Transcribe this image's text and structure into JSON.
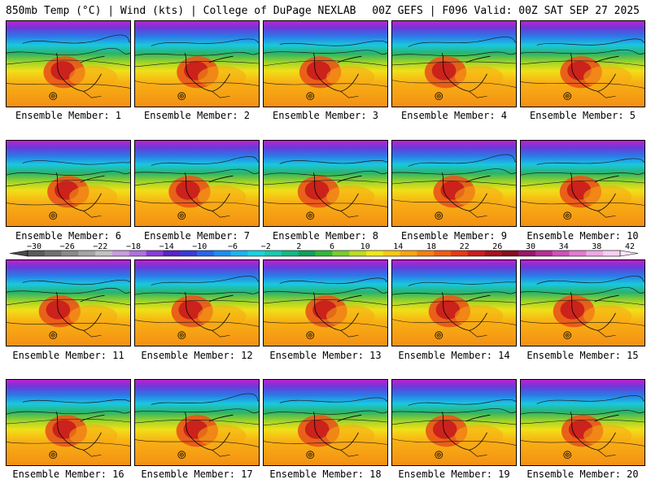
{
  "header": {
    "left": "850mb Temp (°C) | Wind (kts) | College of DuPage NEXLAB",
    "right": "00Z GEFS | F096 Valid: 00Z SAT SEP 27 2025"
  },
  "panels": [
    {
      "label": "Ensemble Member: 1"
    },
    {
      "label": "Ensemble Member: 2"
    },
    {
      "label": "Ensemble Member: 3"
    },
    {
      "label": "Ensemble Member: 4"
    },
    {
      "label": "Ensemble Member: 5"
    },
    {
      "label": "Ensemble Member: 6"
    },
    {
      "label": "Ensemble Member: 7"
    },
    {
      "label": "Ensemble Member: 8"
    },
    {
      "label": "Ensemble Member: 9"
    },
    {
      "label": "Ensemble Member: 10"
    },
    {
      "label": "Ensemble Member: 11"
    },
    {
      "label": "Ensemble Member: 12"
    },
    {
      "label": "Ensemble Member: 13"
    },
    {
      "label": "Ensemble Member: 14"
    },
    {
      "label": "Ensemble Member: 15"
    },
    {
      "label": "Ensemble Member: 16"
    },
    {
      "label": "Ensemble Member: 17"
    },
    {
      "label": "Ensemble Member: 18"
    },
    {
      "label": "Ensemble Member: 19"
    },
    {
      "label": "Ensemble Member: 20"
    }
  ],
  "colorbar": {
    "ticks": [
      "−30",
      "−26",
      "−22",
      "−18",
      "−14",
      "−10",
      "−6",
      "−2",
      "2",
      "6",
      "10",
      "14",
      "18",
      "22",
      "26",
      "30",
      "34",
      "38",
      "42"
    ],
    "colors": [
      "#5a5a5a",
      "#707070",
      "#8a8a8a",
      "#a5a5a5",
      "#c2c2c2",
      "#c89ce0",
      "#b070e0",
      "#8a3cd8",
      "#5a24c8",
      "#3a3ad8",
      "#2a64e8",
      "#1c8ef0",
      "#1ab4f0",
      "#19d2e0",
      "#18c8b0",
      "#14b884",
      "#11a05a",
      "#30b838",
      "#78cc2c",
      "#bcdc20",
      "#f0e818",
      "#f8c816",
      "#f8a414",
      "#f48014",
      "#ee5c14",
      "#e43a14",
      "#cc1c1c",
      "#a8121c",
      "#86101e",
      "#98186a",
      "#b82c96",
      "#d050b8",
      "#e47ad0",
      "#f0a8e4",
      "#f8d0f4"
    ]
  }
}
